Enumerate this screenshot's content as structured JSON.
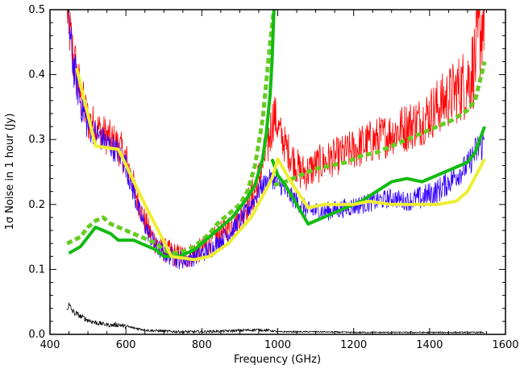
{
  "chart_data": {
    "type": "line",
    "xlabel": "Frequency (GHz)",
    "ylabel": "1σ Noise in 1 hour (Jy)",
    "xlim": [
      400,
      1600
    ],
    "ylim": [
      0.0,
      0.5
    ],
    "x_ticks": [
      400,
      600,
      800,
      1000,
      1200,
      1400,
      1600
    ],
    "x_tick_labels": [
      "400",
      "600",
      "800",
      "1000",
      "1200",
      "1400",
      "1600"
    ],
    "y_ticks": [
      0.0,
      0.1,
      0.2,
      0.3,
      0.4,
      0.5
    ],
    "y_tick_labels": [
      "0.0",
      "0.1",
      "0.2",
      "0.3",
      "0.4",
      "0.5"
    ],
    "grid": false,
    "legend": "none",
    "series": [
      {
        "color": "#ff0000",
        "style": "noisy-thin",
        "x": [
          445,
          460,
          480,
          500,
          520,
          540,
          560,
          580,
          600,
          620,
          640,
          660,
          680,
          700,
          720,
          740,
          760,
          780,
          800,
          820,
          840,
          860,
          880,
          900,
          920,
          940,
          960,
          980,
          990,
          1000,
          1020,
          1040,
          1060,
          1080,
          1100,
          1140,
          1180,
          1220,
          1260,
          1300,
          1340,
          1380,
          1420,
          1460,
          1500,
          1520,
          1545
        ],
        "y": [
          0.5,
          0.43,
          0.37,
          0.33,
          0.32,
          0.31,
          0.3,
          0.29,
          0.27,
          0.23,
          0.19,
          0.16,
          0.14,
          0.13,
          0.125,
          0.12,
          0.12,
          0.125,
          0.13,
          0.14,
          0.15,
          0.16,
          0.17,
          0.18,
          0.2,
          0.22,
          0.26,
          0.31,
          0.34,
          0.32,
          0.29,
          0.27,
          0.25,
          0.25,
          0.26,
          0.27,
          0.28,
          0.29,
          0.3,
          0.31,
          0.32,
          0.33,
          0.35,
          0.37,
          0.39,
          0.42,
          0.5
        ],
        "noise": [
          0.04,
          0.05,
          0.04,
          0.035,
          0.03,
          0.03,
          0.03,
          0.03,
          0.03,
          0.025,
          0.02,
          0.02,
          0.02,
          0.02,
          0.02,
          0.02,
          0.02,
          0.02,
          0.02,
          0.02,
          0.02,
          0.02,
          0.02,
          0.02,
          0.025,
          0.03,
          0.035,
          0.04,
          0.04,
          0.03,
          0.03,
          0.03,
          0.03,
          0.03,
          0.03,
          0.03,
          0.03,
          0.035,
          0.035,
          0.035,
          0.04,
          0.04,
          0.045,
          0.05,
          0.06,
          0.07,
          0.08
        ]
      },
      {
        "color": "#3300ff",
        "style": "noisy-thin",
        "x": [
          445,
          460,
          480,
          500,
          520,
          540,
          560,
          580,
          600,
          620,
          640,
          660,
          680,
          700,
          720,
          740,
          760,
          780,
          800,
          820,
          840,
          860,
          880,
          900,
          920,
          940,
          960,
          980,
          1000,
          1020,
          1040,
          1060,
          1080,
          1100,
          1140,
          1180,
          1220,
          1260,
          1300,
          1340,
          1380,
          1420,
          1460,
          1500,
          1520,
          1545
        ],
        "y": [
          0.5,
          0.42,
          0.36,
          0.32,
          0.31,
          0.3,
          0.29,
          0.28,
          0.26,
          0.22,
          0.18,
          0.155,
          0.135,
          0.125,
          0.12,
          0.115,
          0.115,
          0.12,
          0.125,
          0.13,
          0.14,
          0.15,
          0.16,
          0.175,
          0.19,
          0.21,
          0.23,
          0.24,
          0.235,
          0.22,
          0.21,
          0.2,
          0.19,
          0.19,
          0.19,
          0.195,
          0.2,
          0.205,
          0.21,
          0.205,
          0.21,
          0.22,
          0.24,
          0.26,
          0.28,
          0.3
        ],
        "noise": [
          0.03,
          0.035,
          0.03,
          0.025,
          0.02,
          0.02,
          0.02,
          0.02,
          0.02,
          0.02,
          0.015,
          0.015,
          0.015,
          0.015,
          0.015,
          0.015,
          0.015,
          0.015,
          0.015,
          0.015,
          0.015,
          0.015,
          0.015,
          0.015,
          0.015,
          0.015,
          0.015,
          0.015,
          0.015,
          0.015,
          0.015,
          0.015,
          0.015,
          0.015,
          0.015,
          0.015,
          0.015,
          0.015,
          0.015,
          0.015,
          0.02,
          0.02,
          0.02,
          0.02,
          0.025,
          0.03
        ]
      },
      {
        "color": "#11bb11",
        "style": "solid-thick",
        "x": [
          450,
          480,
          500,
          520,
          540,
          560,
          580,
          600,
          620,
          640,
          660,
          680,
          700,
          720,
          740,
          760,
          780,
          800,
          820,
          840,
          860,
          880,
          900,
          920,
          940,
          960,
          970,
          980,
          985,
          990
        ],
        "y": [
          0.125,
          0.135,
          0.15,
          0.165,
          0.16,
          0.155,
          0.145,
          0.145,
          0.145,
          0.14,
          0.135,
          0.13,
          0.12,
          0.12,
          0.12,
          0.125,
          0.13,
          0.14,
          0.15,
          0.16,
          0.17,
          0.18,
          0.195,
          0.21,
          0.23,
          0.27,
          0.31,
          0.37,
          0.42,
          0.5
        ]
      },
      {
        "color": "#11bb11",
        "style": "solid-thick",
        "x": [
          985,
          1000,
          1020,
          1040,
          1060,
          1080,
          1100,
          1140,
          1180,
          1220,
          1260,
          1300,
          1340,
          1380,
          1420,
          1460,
          1500,
          1520,
          1545
        ],
        "y": [
          0.27,
          0.245,
          0.23,
          0.21,
          0.19,
          0.17,
          0.175,
          0.185,
          0.195,
          0.205,
          0.22,
          0.235,
          0.24,
          0.235,
          0.245,
          0.255,
          0.265,
          0.28,
          0.32
        ]
      },
      {
        "color": "#66cc22",
        "style": "dashed-thick",
        "x": [
          445,
          480,
          500,
          520,
          540,
          560,
          580,
          600,
          620,
          640,
          660,
          680,
          700,
          720,
          740,
          760,
          780,
          800,
          820,
          840,
          860,
          880,
          900,
          920,
          940,
          960,
          970,
          980,
          990
        ],
        "y": [
          0.14,
          0.15,
          0.165,
          0.175,
          0.18,
          0.17,
          0.165,
          0.16,
          0.155,
          0.15,
          0.145,
          0.14,
          0.13,
          0.125,
          0.125,
          0.13,
          0.135,
          0.145,
          0.155,
          0.17,
          0.18,
          0.19,
          0.2,
          0.22,
          0.26,
          0.33,
          0.39,
          0.45,
          0.5
        ]
      },
      {
        "color": "#66cc22",
        "style": "dashed-thick",
        "x": [
          990,
          1020,
          1060,
          1100,
          1140,
          1180,
          1220,
          1260,
          1300,
          1340,
          1380,
          1420,
          1460,
          1500,
          1520,
          1545
        ],
        "y": [
          0.23,
          0.235,
          0.245,
          0.255,
          0.26,
          0.265,
          0.275,
          0.28,
          0.29,
          0.3,
          0.31,
          0.32,
          0.33,
          0.345,
          0.36,
          0.42
        ]
      },
      {
        "color": "#eeee33",
        "style": "solid-thick",
        "x": [
          470,
          520,
          580,
          650,
          720,
          780,
          820,
          870,
          930,
          985,
          1000,
          1040,
          1080,
          1120,
          1160,
          1200,
          1240,
          1300,
          1360,
          1420,
          1470,
          1500,
          1545
        ],
        "y": [
          0.41,
          0.29,
          0.285,
          0.2,
          0.12,
          0.115,
          0.12,
          0.14,
          0.18,
          0.24,
          0.27,
          0.23,
          0.195,
          0.2,
          0.2,
          0.2,
          0.205,
          0.2,
          0.2,
          0.2,
          0.205,
          0.22,
          0.27
        ]
      },
      {
        "color": "#000000",
        "style": "noisy-thin",
        "x": [
          445,
          450,
          460,
          480,
          500,
          520,
          540,
          560,
          580,
          600,
          620,
          640,
          660,
          700,
          740,
          800,
          860,
          900,
          940,
          980,
          1000,
          1040,
          1100,
          1200,
          1300,
          1400,
          1500,
          1545
        ],
        "y": [
          0.04,
          0.045,
          0.035,
          0.028,
          0.022,
          0.018,
          0.016,
          0.014,
          0.015,
          0.012,
          0.01,
          0.008,
          0.006,
          0.005,
          0.004,
          0.004,
          0.005,
          0.006,
          0.007,
          0.006,
          0.004,
          0.004,
          0.004,
          0.003,
          0.003,
          0.003,
          0.003,
          0.003
        ],
        "noise": [
          0.004,
          0.006,
          0.005,
          0.004,
          0.004,
          0.004,
          0.003,
          0.003,
          0.004,
          0.003,
          0.002,
          0.002,
          0.002,
          0.002,
          0.002,
          0.002,
          0.002,
          0.002,
          0.002,
          0.002,
          0.001,
          0.001,
          0.001,
          0.001,
          0.001,
          0.001,
          0.001,
          0.001
        ]
      }
    ]
  }
}
